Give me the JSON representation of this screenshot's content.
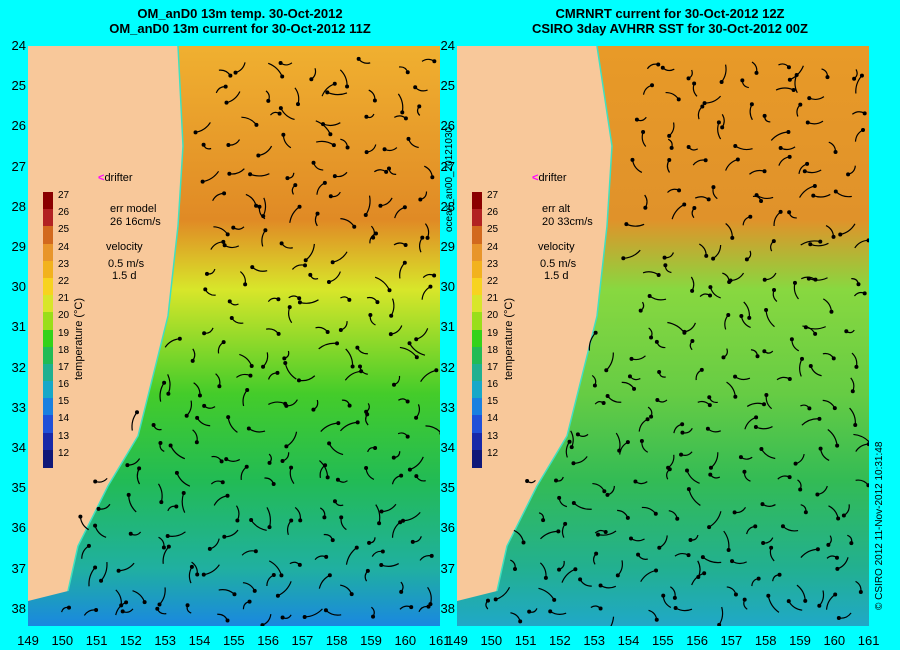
{
  "left_panel": {
    "title_line1": "OM_anD0 13m temp. 30-Oct-2012",
    "title_line2": "OM_anD0 13m current for 30-Oct-2012 11Z",
    "drifter_label": "drifter",
    "err_label": "err model",
    "err_value": "26 16cm/s",
    "velocity_label": "velocity",
    "velocity_scale": "0.5 m/s",
    "velocity_days": "1.5 d"
  },
  "right_panel": {
    "title_line1": "CMRNRT current for 30-Oct-2012 12Z",
    "title_line2": "CSIRO 3day AVHRR SST for 30-Oct-2012 00Z",
    "drifter_label": "drifter",
    "err_label": "err alt",
    "err_value": "20 33cm/s",
    "velocity_label": "velocity",
    "velocity_scale": "0.5 m/s",
    "velocity_days": "1.5 d"
  },
  "colorbar": {
    "label": "temperature (°C)",
    "ticks": [
      "27",
      "26",
      "25",
      "24",
      "23",
      "22",
      "21",
      "20",
      "19",
      "18",
      "17",
      "16",
      "15",
      "14",
      "13",
      "12"
    ],
    "colors": [
      "#8b0000",
      "#b22222",
      "#d2691e",
      "#e8952a",
      "#f2b21e",
      "#f7d320",
      "#d8e62a",
      "#9ade1a",
      "#34d21a",
      "#22bb55",
      "#20b090",
      "#18a8c8",
      "#1a80e0",
      "#2050d8",
      "#1828a8",
      "#101878"
    ]
  },
  "axes": {
    "y_ticks": [
      "24",
      "25",
      "26",
      "27",
      "28",
      "29",
      "30",
      "31",
      "32",
      "33",
      "34",
      "35",
      "36",
      "37",
      "38"
    ],
    "x_ticks_left": [
      "149",
      "150",
      "151",
      "152",
      "153",
      "154",
      "155",
      "156",
      "157",
      "158",
      "159",
      "160",
      "161"
    ],
    "x_ticks_right": [
      "149",
      "150",
      "151",
      "152",
      "153",
      "154",
      "155",
      "156",
      "157",
      "158",
      "159",
      "160",
      "161"
    ]
  },
  "side_labels": {
    "left_right_edge": "ocean_an00_20121030",
    "right_right_edge": "© CSIRO 2012   11-Nov-2012 10:31:48"
  },
  "colors": {
    "background": "#00ffff",
    "land": "#f8c89a"
  }
}
